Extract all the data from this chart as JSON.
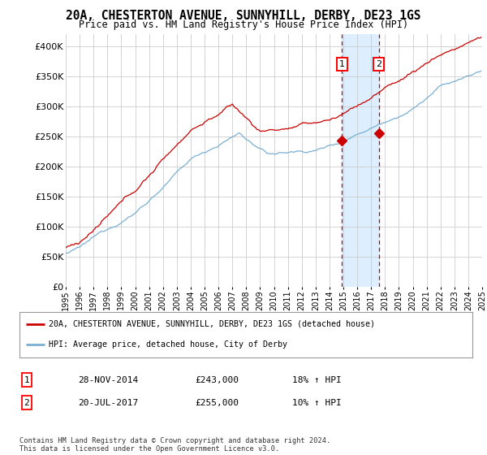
{
  "title": "20A, CHESTERTON AVENUE, SUNNYHILL, DERBY, DE23 1GS",
  "subtitle": "Price paid vs. HM Land Registry's House Price Index (HPI)",
  "ylabel_ticks": [
    "£0",
    "£50K",
    "£100K",
    "£150K",
    "£200K",
    "£250K",
    "£300K",
    "£350K",
    "£400K"
  ],
  "ytick_values": [
    0,
    50000,
    100000,
    150000,
    200000,
    250000,
    300000,
    350000,
    400000
  ],
  "ylim": [
    0,
    420000
  ],
  "sale1_year": 2014.91,
  "sale1_price": 243000,
  "sale1_label": "28-NOV-2014",
  "sale1_note": "18% ↑ HPI",
  "sale2_year": 2017.55,
  "sale2_price": 255000,
  "sale2_label": "20-JUL-2017",
  "sale2_note": "10% ↑ HPI",
  "legend_line1": "20A, CHESTERTON AVENUE, SUNNYHILL, DERBY, DE23 1GS (detached house)",
  "legend_line2": "HPI: Average price, detached house, City of Derby",
  "footer": "Contains HM Land Registry data © Crown copyright and database right 2024.\nThis data is licensed under the Open Government Licence v3.0.",
  "line_color_red": "#cc0000",
  "line_color_blue": "#7aafd4",
  "shade_color": "#ddeeff",
  "grid_color": "#cccccc",
  "background_color": "#ffffff"
}
